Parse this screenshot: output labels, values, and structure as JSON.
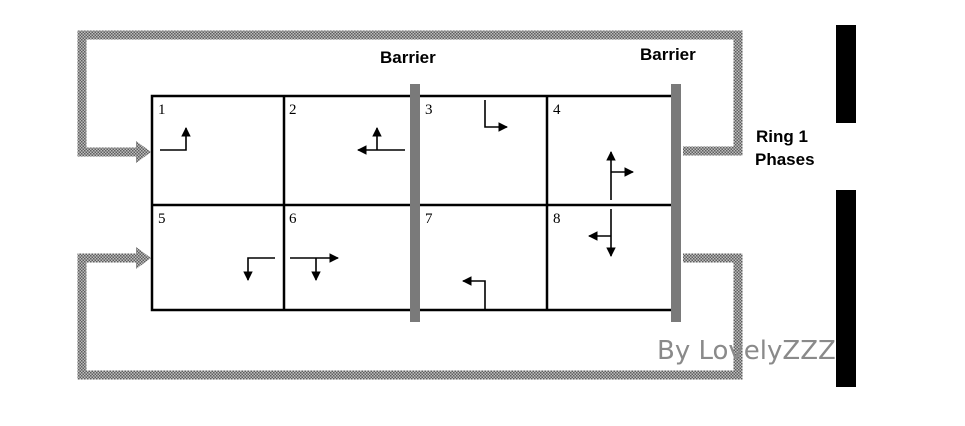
{
  "diagram": {
    "barrier_labels": [
      "Barrier",
      "Barrier"
    ],
    "ring_label": [
      "Ring 1",
      "Phases"
    ],
    "phases": [
      {
        "number": "1",
        "movements": [
          "left-turn-north"
        ]
      },
      {
        "number": "2",
        "movements": [
          "through-west",
          "left-turn-north"
        ]
      },
      {
        "number": "3",
        "movements": [
          "left-turn-east"
        ]
      },
      {
        "number": "4",
        "movements": [
          "through-north",
          "right-turn-east"
        ]
      },
      {
        "number": "5",
        "movements": [
          "left-turn-south"
        ]
      },
      {
        "number": "6",
        "movements": [
          "through-east",
          "right-turn-south"
        ]
      },
      {
        "number": "7",
        "movements": [
          "left-turn-west"
        ]
      },
      {
        "number": "8",
        "movements": [
          "through-south",
          "right-turn-west"
        ]
      }
    ],
    "watermark": "By LovelyZZZ",
    "colors": {
      "grid_line": "#000000",
      "barrier": "#777777",
      "loop_arrow": "#9a9a9a",
      "side_bar": "#000000",
      "watermark": "#8a8a8a"
    }
  }
}
